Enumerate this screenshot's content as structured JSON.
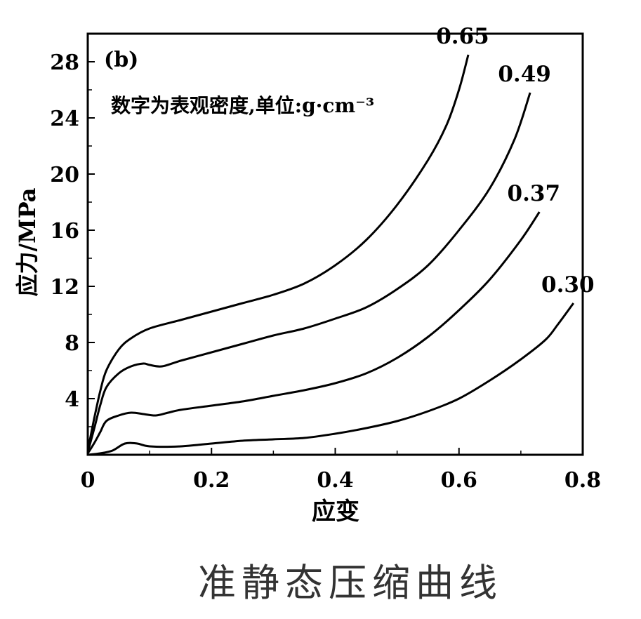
{
  "caption": "准静态压缩曲线",
  "chart_data": {
    "type": "line",
    "panel_label": "(b)",
    "annotation": "数字为表观密度,单位:g·cm⁻³",
    "xlabel": "应变",
    "ylabel": "应力/MPa",
    "xlim": [
      0,
      0.8
    ],
    "ylim": [
      0,
      30
    ],
    "xticks": [
      "0",
      "0.2",
      "0.4",
      "0.6",
      "0.8"
    ],
    "yticks": [
      "4",
      "8",
      "12",
      "16",
      "20",
      "24",
      "28"
    ],
    "grid": false,
    "series": [
      {
        "name": "0.65",
        "points": [
          [
            0.0,
            0.3
          ],
          [
            0.01,
            2.5
          ],
          [
            0.02,
            4.5
          ],
          [
            0.03,
            6.0
          ],
          [
            0.05,
            7.5
          ],
          [
            0.07,
            8.3
          ],
          [
            0.1,
            9.0
          ],
          [
            0.15,
            9.6
          ],
          [
            0.2,
            10.2
          ],
          [
            0.25,
            10.8
          ],
          [
            0.3,
            11.4
          ],
          [
            0.35,
            12.2
          ],
          [
            0.4,
            13.5
          ],
          [
            0.45,
            15.3
          ],
          [
            0.5,
            17.8
          ],
          [
            0.55,
            21.0
          ],
          [
            0.58,
            23.5
          ],
          [
            0.6,
            26.0
          ],
          [
            0.615,
            28.5
          ]
        ]
      },
      {
        "name": "0.49",
        "points": [
          [
            0.0,
            0.2
          ],
          [
            0.01,
            1.8
          ],
          [
            0.02,
            3.5
          ],
          [
            0.03,
            4.8
          ],
          [
            0.05,
            5.8
          ],
          [
            0.07,
            6.3
          ],
          [
            0.09,
            6.5
          ],
          [
            0.1,
            6.4
          ],
          [
            0.12,
            6.3
          ],
          [
            0.15,
            6.7
          ],
          [
            0.2,
            7.3
          ],
          [
            0.25,
            7.9
          ],
          [
            0.3,
            8.5
          ],
          [
            0.35,
            9.0
          ],
          [
            0.4,
            9.7
          ],
          [
            0.45,
            10.5
          ],
          [
            0.5,
            11.8
          ],
          [
            0.55,
            13.5
          ],
          [
            0.6,
            16.0
          ],
          [
            0.65,
            19.0
          ],
          [
            0.69,
            22.5
          ],
          [
            0.715,
            25.8
          ]
        ]
      },
      {
        "name": "0.37",
        "points": [
          [
            0.0,
            0.1
          ],
          [
            0.01,
            0.8
          ],
          [
            0.02,
            1.6
          ],
          [
            0.03,
            2.4
          ],
          [
            0.05,
            2.8
          ],
          [
            0.07,
            3.0
          ],
          [
            0.09,
            2.9
          ],
          [
            0.11,
            2.8
          ],
          [
            0.13,
            3.0
          ],
          [
            0.15,
            3.2
          ],
          [
            0.2,
            3.5
          ],
          [
            0.25,
            3.8
          ],
          [
            0.3,
            4.2
          ],
          [
            0.35,
            4.6
          ],
          [
            0.4,
            5.1
          ],
          [
            0.45,
            5.8
          ],
          [
            0.5,
            6.9
          ],
          [
            0.55,
            8.4
          ],
          [
            0.6,
            10.3
          ],
          [
            0.65,
            12.5
          ],
          [
            0.7,
            15.3
          ],
          [
            0.73,
            17.3
          ]
        ]
      },
      {
        "name": "0.30",
        "points": [
          [
            0.0,
            0.0
          ],
          [
            0.02,
            0.1
          ],
          [
            0.04,
            0.3
          ],
          [
            0.06,
            0.8
          ],
          [
            0.08,
            0.8
          ],
          [
            0.1,
            0.6
          ],
          [
            0.15,
            0.6
          ],
          [
            0.2,
            0.8
          ],
          [
            0.25,
            1.0
          ],
          [
            0.3,
            1.1
          ],
          [
            0.35,
            1.2
          ],
          [
            0.4,
            1.5
          ],
          [
            0.45,
            1.9
          ],
          [
            0.5,
            2.4
          ],
          [
            0.55,
            3.1
          ],
          [
            0.6,
            4.0
          ],
          [
            0.65,
            5.3
          ],
          [
            0.7,
            6.8
          ],
          [
            0.74,
            8.2
          ],
          [
            0.76,
            9.3
          ],
          [
            0.785,
            10.8
          ]
        ]
      }
    ]
  }
}
